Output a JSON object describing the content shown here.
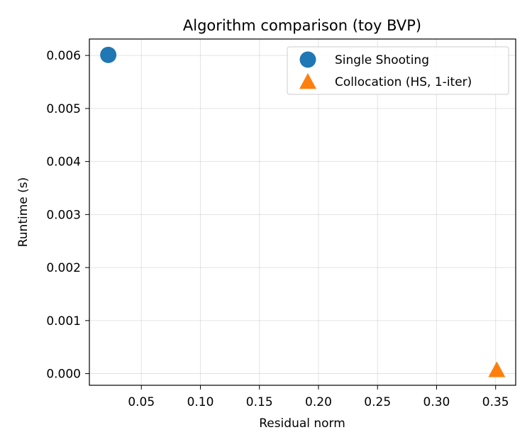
{
  "chart_data": {
    "type": "scatter",
    "title": "Algorithm comparison (toy BVP)",
    "xlabel": "Residual norm",
    "ylabel": "Runtime (s)",
    "xlim": [
      0.006,
      0.367
    ],
    "ylim": [
      -0.00022,
      0.00631
    ],
    "xticks": [
      0.05,
      0.1,
      0.15,
      0.2,
      0.25,
      0.3,
      0.35
    ],
    "xtick_labels": [
      "0.05",
      "0.10",
      "0.15",
      "0.20",
      "0.25",
      "0.30",
      "0.35"
    ],
    "yticks": [
      0.0,
      0.001,
      0.002,
      0.003,
      0.004,
      0.005,
      0.006
    ],
    "ytick_labels": [
      "0.000",
      "0.001",
      "0.002",
      "0.003",
      "0.004",
      "0.005",
      "0.006"
    ],
    "grid": true,
    "legend": "top-right",
    "series": [
      {
        "name": "Single Shooting",
        "marker": "circle",
        "color": "#1f77b4",
        "points": [
          {
            "x": 0.022,
            "y": 0.00601
          }
        ]
      },
      {
        "name": "Collocation (HS, 1-iter)",
        "marker": "triangle",
        "color": "#ff7f0e",
        "points": [
          {
            "x": 0.351,
            "y": 7e-05
          }
        ]
      }
    ]
  }
}
